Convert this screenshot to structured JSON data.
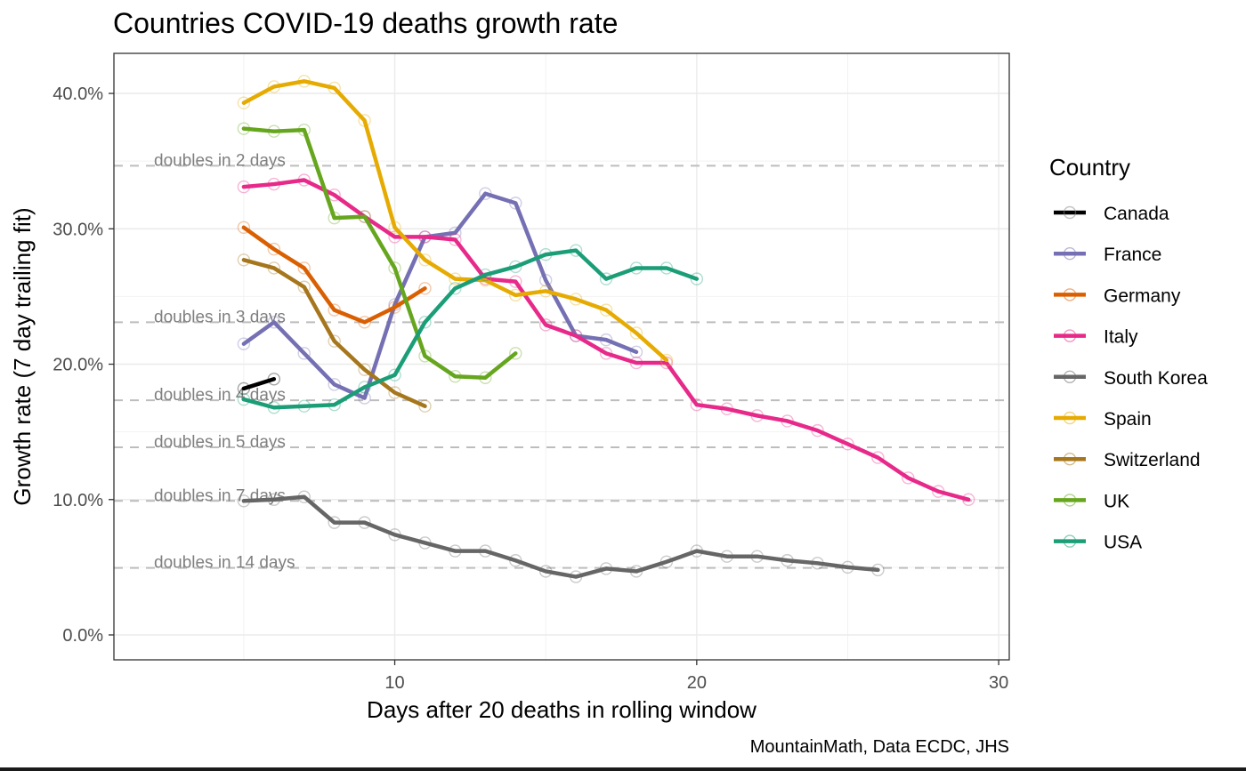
{
  "chart_data": {
    "type": "line",
    "title": "Countries COVID-19 deaths growth rate",
    "xlabel": "Days after 20 deaths in rolling window",
    "ylabel": "Growth rate (7 day trailing fit)",
    "caption": "MountainMath, Data ECDC, JHS",
    "xlim": [
      0.7,
      30.35
    ],
    "ylim": [
      -1.84,
      42.96
    ],
    "x_ticks": [
      10,
      20,
      30
    ],
    "x_tick_labels": [
      "10",
      "20",
      "30"
    ],
    "y_ticks": [
      0,
      10,
      20,
      30,
      40
    ],
    "y_tick_labels": [
      "0.0%",
      "10.0%",
      "20.0%",
      "30.0%",
      "40.0%"
    ],
    "y_unit": "percent",
    "grid": true,
    "legend": {
      "title": "Country",
      "position": "right"
    },
    "reference_lines": [
      {
        "label": "doubles in 2 days",
        "value": 34.66
      },
      {
        "label": "doubles in 3 days",
        "value": 23.1
      },
      {
        "label": "doubles in 4 days",
        "value": 17.33
      },
      {
        "label": "doubles in 5 days",
        "value": 13.86
      },
      {
        "label": "doubles in 7 days",
        "value": 9.9
      },
      {
        "label": "doubles in 14 days",
        "value": 4.95
      }
    ],
    "series": [
      {
        "name": "Canada",
        "color": "#000000",
        "x": [
          5,
          6
        ],
        "values": [
          18.2,
          18.9
        ]
      },
      {
        "name": "France",
        "color": "#7570b3",
        "x": [
          5,
          6,
          7,
          8,
          9,
          10,
          11,
          12,
          13,
          14,
          15,
          16,
          17,
          18
        ],
        "values": [
          21.5,
          23.1,
          20.8,
          18.5,
          17.5,
          24.4,
          29.4,
          29.7,
          32.6,
          31.9,
          26.2,
          22.1,
          21.8,
          20.9
        ]
      },
      {
        "name": "Germany",
        "color": "#d95f02",
        "x": [
          5,
          6,
          7,
          8,
          9,
          10,
          11
        ],
        "values": [
          30.1,
          28.5,
          27.1,
          24.0,
          23.1,
          24.2,
          25.6
        ]
      },
      {
        "name": "Italy",
        "color": "#e7298a",
        "x": [
          5,
          6,
          7,
          8,
          9,
          10,
          11,
          12,
          13,
          14,
          15,
          16,
          17,
          18,
          19,
          20,
          21,
          22,
          23,
          24,
          25,
          26,
          27,
          28,
          29
        ],
        "values": [
          33.1,
          33.3,
          33.6,
          32.5,
          30.9,
          29.4,
          29.4,
          29.2,
          26.3,
          26.1,
          22.9,
          22.1,
          20.8,
          20.1,
          20.1,
          17.0,
          16.7,
          16.2,
          15.8,
          15.1,
          14.1,
          13.1,
          11.6,
          10.6,
          10.0
        ]
      },
      {
        "name": "South Korea",
        "color": "#666666",
        "x": [
          5,
          6,
          7,
          8,
          9,
          10,
          11,
          12,
          13,
          14,
          15,
          16,
          17,
          18,
          19,
          20,
          21,
          22,
          23,
          24,
          25,
          26
        ],
        "values": [
          9.9,
          10.0,
          10.2,
          8.3,
          8.3,
          7.4,
          6.8,
          6.2,
          6.2,
          5.5,
          4.7,
          4.3,
          4.9,
          4.7,
          5.4,
          6.2,
          5.8,
          5.8,
          5.5,
          5.3,
          5.0,
          4.8
        ]
      },
      {
        "name": "Spain",
        "color": "#e6ab02",
        "x": [
          5,
          6,
          7,
          8,
          9,
          10,
          11,
          12,
          13,
          14,
          15,
          16,
          17,
          18,
          19
        ],
        "values": [
          39.3,
          40.5,
          40.9,
          40.4,
          38.0,
          30.1,
          27.7,
          26.3,
          26.2,
          25.1,
          25.4,
          24.8,
          24.0,
          22.3,
          20.3
        ]
      },
      {
        "name": "Switzerland",
        "color": "#a6761d",
        "x": [
          5,
          6,
          7,
          8,
          9,
          10,
          11
        ],
        "values": [
          27.7,
          27.1,
          25.7,
          21.7,
          19.6,
          17.9,
          16.9
        ]
      },
      {
        "name": "UK",
        "color": "#66a61e",
        "x": [
          5,
          6,
          7,
          8,
          9,
          10,
          11,
          12,
          13,
          14
        ],
        "values": [
          37.4,
          37.2,
          37.3,
          30.8,
          30.9,
          27.1,
          20.6,
          19.1,
          19.0,
          20.8
        ]
      },
      {
        "name": "USA",
        "color": "#1b9e77",
        "x": [
          5,
          6,
          7,
          8,
          9,
          10,
          11,
          12,
          13,
          14,
          15,
          16,
          17,
          18,
          19,
          20
        ],
        "values": [
          17.4,
          16.8,
          16.9,
          17.0,
          18.3,
          19.2,
          23.1,
          25.6,
          26.6,
          27.2,
          28.1,
          28.4,
          26.3,
          27.1,
          27.1,
          26.3
        ]
      }
    ]
  }
}
